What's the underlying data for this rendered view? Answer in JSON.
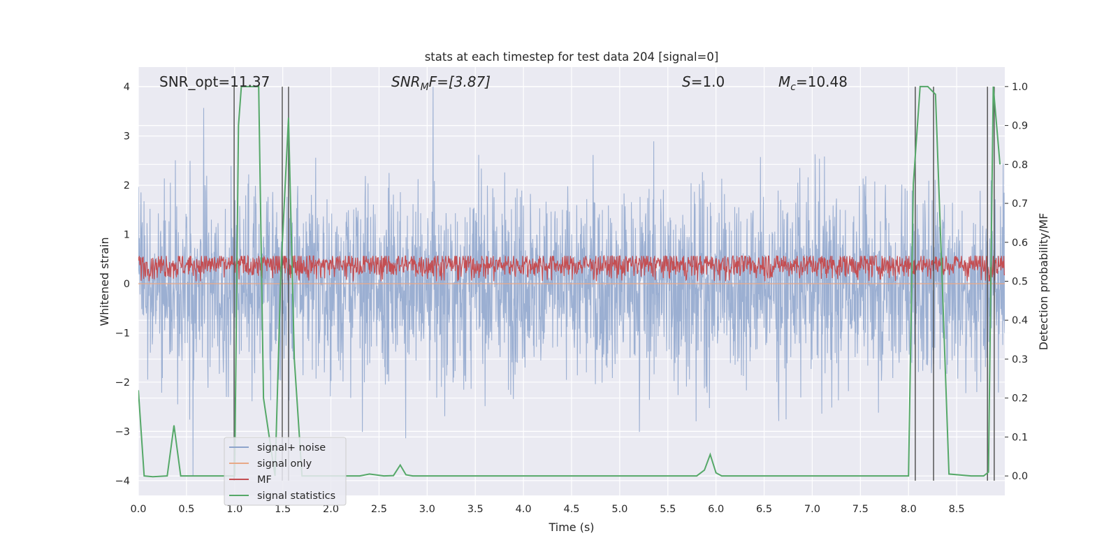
{
  "chart_data": {
    "type": "line",
    "title": "stats at each timestep for test data 204 [signal=0]",
    "xlabel": "Time (s)",
    "ylabel": "Whitened strain",
    "ylabel_right": "Detection probability/MF",
    "xlim": [
      0.0,
      9.0
    ],
    "ylim": [
      -4.3,
      4.4
    ],
    "ylim_right": [
      -0.05,
      1.05
    ],
    "grid": true,
    "x_ticks": [
      "0.0",
      "0.5",
      "1.0",
      "1.5",
      "2.0",
      "2.5",
      "3.0",
      "3.5",
      "4.0",
      "4.5",
      "5.0",
      "5.5",
      "6.0",
      "6.5",
      "7.0",
      "7.5",
      "8.0",
      "8.5"
    ],
    "y_ticks": [
      "−4",
      "−3",
      "−2",
      "−1",
      "0",
      "1",
      "2",
      "3",
      "4"
    ],
    "y_ticks_right": [
      "0.0",
      "0.1",
      "0.2",
      "0.3",
      "0.4",
      "0.5",
      "0.6",
      "0.7",
      "0.8",
      "0.9",
      "1.0"
    ],
    "annotations": {
      "snr_opt": "SNR_opt=11.37",
      "snr_mf_base": "SNR",
      "snr_mf_sub": "M",
      "snr_mf_rest": "F=[3.87]",
      "s_base": "S",
      "s_rest": "=1.0",
      "mc_base": "M",
      "mc_sub": "c",
      "mc_rest": "=10.48"
    },
    "legend": {
      "position": "lower-left",
      "entries": [
        {
          "label": "signal+ noise",
          "color": "#8da4cc"
        },
        {
          "label": "signal only",
          "color": "#e8a887"
        },
        {
          "label": "MF",
          "color": "#c44e52"
        },
        {
          "label": "signal statistics",
          "color": "#55a868"
        }
      ]
    },
    "series": [
      {
        "name": "signal+ noise",
        "axis": "left",
        "style": "dense noise band",
        "approx_range": [
          -3.9,
          4.0
        ],
        "typical_envelope": [
          -2.2,
          2.3
        ]
      },
      {
        "name": "signal only",
        "axis": "left",
        "values_all": 0
      },
      {
        "name": "MF",
        "axis": "right",
        "style": "dense band",
        "approx_range": [
          0.5,
          0.6
        ]
      },
      {
        "name": "signal statistics",
        "axis": "right",
        "x": [
          0.0,
          0.06,
          0.15,
          0.3,
          0.37,
          0.44,
          0.5,
          1.0,
          1.04,
          1.07,
          1.25,
          1.3,
          1.42,
          1.48,
          1.56,
          1.62,
          1.7,
          2.3,
          2.4,
          2.55,
          2.65,
          2.72,
          2.78,
          2.85,
          3.5,
          5.8,
          5.88,
          5.94,
          6.0,
          6.06,
          8.0,
          8.05,
          8.12,
          8.2,
          8.28,
          8.35,
          8.42,
          8.65,
          8.78,
          8.83,
          8.88,
          8.95
        ],
        "y": [
          0.22,
          0.0,
          -0.002,
          0.0,
          0.13,
          0.0,
          0.0,
          0.0,
          0.9,
          1.0,
          1.0,
          0.2,
          0.0,
          0.52,
          0.92,
          0.3,
          0.0,
          0.0,
          0.005,
          0.0,
          0.001,
          0.028,
          0.003,
          0.0,
          0.0,
          0.0,
          0.015,
          0.055,
          0.008,
          0.0,
          0.0,
          0.75,
          1.0,
          1.0,
          0.98,
          0.5,
          0.005,
          0.0,
          0.0,
          0.01,
          1.0,
          0.8
        ]
      },
      {
        "name": "vertical markers",
        "axis": "left",
        "x": [
          0.995,
          1.495,
          1.56,
          8.07,
          8.26,
          8.82,
          8.89
        ]
      }
    ]
  }
}
